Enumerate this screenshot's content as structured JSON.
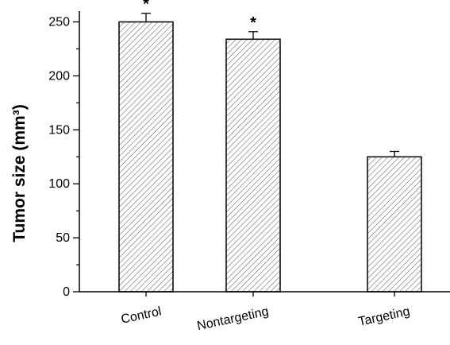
{
  "chart_data": {
    "type": "bar",
    "categories": [
      "Control",
      "Nontargeting",
      "Targeting"
    ],
    "values": [
      250,
      234,
      125
    ],
    "errors": [
      8,
      7,
      5
    ],
    "annotations": [
      "*",
      "*",
      ""
    ],
    "title": "",
    "xlabel": "",
    "ylabel": "Tumor size (mm³)",
    "ylim": [
      0,
      260
    ],
    "yticks": [
      0,
      50,
      100,
      150,
      200,
      250
    ],
    "yticks_minor": [
      25,
      75,
      125,
      175,
      225
    ],
    "bar_pattern": "diagonal-hatch",
    "bar_color": "#777777",
    "grid": false
  }
}
